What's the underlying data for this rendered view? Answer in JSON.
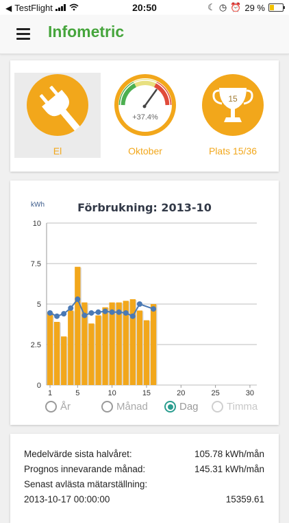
{
  "status_bar": {
    "carrier": "TestFlight",
    "time": "20:50",
    "battery_percent": "29 %"
  },
  "app_bar": {
    "title": "Infometric"
  },
  "tiles": {
    "el": {
      "label": "El",
      "icon": "plug-icon"
    },
    "gauge": {
      "value_text": "+37.4%",
      "label": "Oktober",
      "icon": "gauge-icon"
    },
    "rank": {
      "trophy_number": "15",
      "label": "Plats 15/36",
      "icon": "trophy-icon"
    }
  },
  "colors": {
    "accent": "#f2a71b",
    "brand_green": "#46a53c",
    "line_blue": "#4a79b4",
    "radio_teal": "#2a9d8f"
  },
  "chart_data": {
    "type": "bar",
    "title": "Förbrukning: 2013-10",
    "ylabel": "kWh",
    "xlabel": "",
    "ylim": [
      0,
      10
    ],
    "xlim": [
      0.5,
      31
    ],
    "yticks": [
      "0",
      "2.5",
      "5",
      "7.5",
      "10"
    ],
    "xticks": [
      "1",
      "5",
      "10",
      "15",
      "20",
      "25",
      "30"
    ],
    "x": [
      1,
      2,
      3,
      4,
      5,
      6,
      7,
      8,
      9,
      10,
      11,
      12,
      13,
      14,
      15,
      16
    ],
    "series": [
      {
        "values": [
          4.5,
          3.9,
          3.0,
          4.6,
          7.3,
          5.1,
          3.8,
          4.3,
          4.8,
          5.1,
          5.1,
          5.2,
          5.3,
          4.6,
          4.0,
          5.0
        ]
      },
      {
        "values": [
          4.45,
          4.25,
          4.4,
          4.75,
          5.3,
          4.3,
          4.45,
          4.5,
          4.55,
          4.5,
          4.5,
          4.45,
          4.25,
          5.0,
          null,
          4.7
        ]
      }
    ],
    "grid": true
  },
  "period_options": [
    {
      "label": "År",
      "selected": false,
      "enabled": true
    },
    {
      "label": "Månad",
      "selected": false,
      "enabled": true
    },
    {
      "label": "Dag",
      "selected": true,
      "enabled": true
    },
    {
      "label": "Timma",
      "selected": false,
      "enabled": false
    }
  ],
  "stats": [
    {
      "label": "Medelvärde sista halvåret:",
      "value": "105.78 kWh/mån"
    },
    {
      "label": "Prognos innevarande månad:",
      "value": "145.31 kWh/mån"
    },
    {
      "label": "Senast avlästa mätarställning:",
      "value": ""
    },
    {
      "label": "2013-10-17 00:00:00",
      "value": "15359.61"
    }
  ]
}
